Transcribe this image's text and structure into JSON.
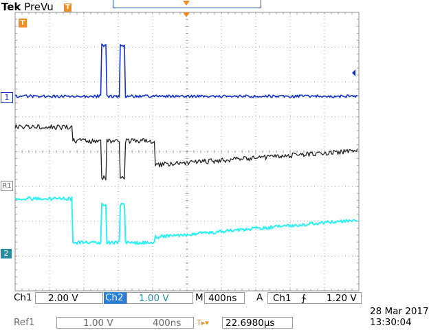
{
  "header": {
    "brand": "Tek",
    "mode": "PreVu",
    "trigger_marker": "T"
  },
  "markers": {
    "trigger_left": "T",
    "ch1": "1",
    "ref1": "R1",
    "ch2": "2"
  },
  "colors": {
    "ch1": "#1030c8",
    "ref1": "#202020",
    "ch2": "#2cf0f4",
    "grid": "#8c8c8c",
    "trigger": "#f28c1e"
  },
  "status": {
    "ch1_label": "Ch1",
    "ch1_scale": "2.00 V",
    "ch2_label": "Ch2",
    "ch2_scale": "1.00 V",
    "timebase_label": "M",
    "timebase": "400ns",
    "trigger_label": "A",
    "trigger_source": "Ch1",
    "trigger_slope": "∱",
    "trigger_level": "1.20 V",
    "ref_label": "Ref1",
    "ref_scale": "1.00 V",
    "ref_timebase": "400ns",
    "delay_icon": "T▸▾",
    "delay": "22.6980µs",
    "date": "28 Mar  2017",
    "time": "13:30:04"
  }
}
